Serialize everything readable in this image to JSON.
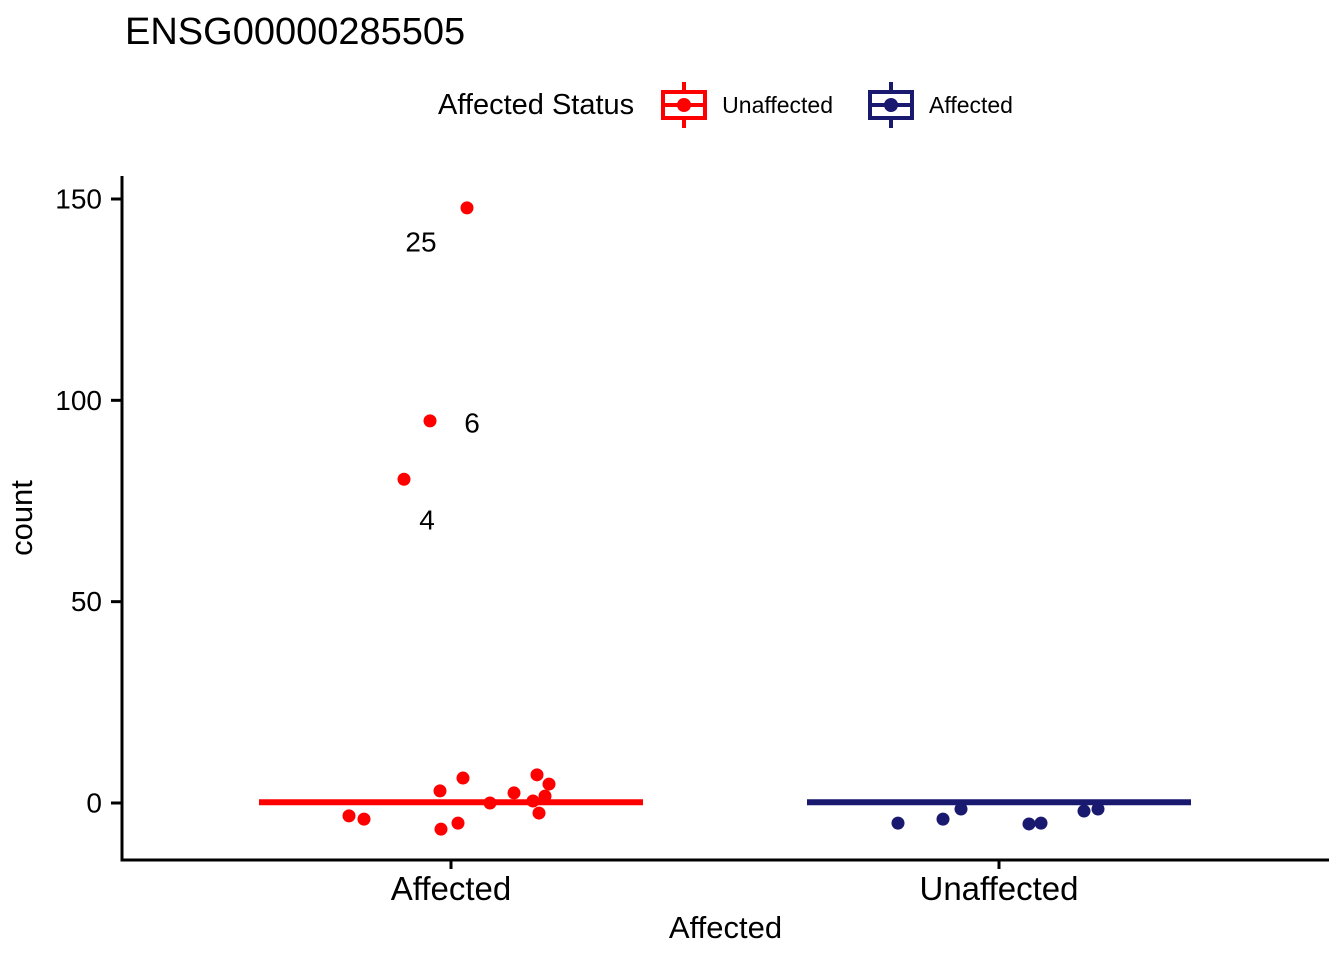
{
  "title": "ENSG00000285505",
  "legend": {
    "title": "Affected Status",
    "items": [
      {
        "label": "Unaffected",
        "color": "#FF0000"
      },
      {
        "label": "Affected",
        "color": "#191970"
      }
    ]
  },
  "chart_data": {
    "type": "scatter",
    "title": "ENSG00000285505",
    "xlabel": "Affected",
    "ylabel": "count",
    "ylim": [
      -14,
      156
    ],
    "yticks": [
      0,
      50,
      100,
      150
    ],
    "categories": [
      "Affected",
      "Unaffected"
    ],
    "grid": false,
    "legend_position": "top",
    "legend_title": "Affected Status",
    "series": [
      {
        "name": "Unaffected",
        "category": "Affected",
        "color": "#FF0000",
        "median": 0.2,
        "points": [
          {
            "count": -3.2,
            "dx": -102
          },
          {
            "count": -4.0,
            "dx": -87
          },
          {
            "count": 3.0,
            "dx": -11
          },
          {
            "count": -6.5,
            "dx": -10
          },
          {
            "count": -5.0,
            "dx": 7
          },
          {
            "count": 6.2,
            "dx": 12
          },
          {
            "count": 0.0,
            "dx": 39
          },
          {
            "count": 2.5,
            "dx": 63
          },
          {
            "count": 7.0,
            "dx": 86
          },
          {
            "count": 4.7,
            "dx": 98
          },
          {
            "count": 0.5,
            "dx": 82
          },
          {
            "count": 1.7,
            "dx": 94
          },
          {
            "count": -2.5,
            "dx": 88
          },
          {
            "count": 147.8,
            "dx": 16
          },
          {
            "count": 94.9,
            "dx": -21
          },
          {
            "count": 80.4,
            "dx": -47
          }
        ]
      },
      {
        "name": "Affected",
        "category": "Unaffected",
        "color": "#191970",
        "median": 0.2,
        "points": [
          {
            "count": -5.0,
            "dx": -101
          },
          {
            "count": -4.0,
            "dx": -56
          },
          {
            "count": -1.5,
            "dx": -38
          },
          {
            "count": -5.2,
            "dx": 30
          },
          {
            "count": -5.0,
            "dx": 42
          },
          {
            "count": -2.0,
            "dx": 85
          },
          {
            "count": -1.5,
            "dx": 99
          }
        ]
      }
    ],
    "annotations": [
      {
        "text": "25",
        "category": "Affected",
        "dx": -30,
        "count": 139.3
      },
      {
        "text": "6",
        "category": "Affected",
        "dx": 21,
        "count": 94.4
      },
      {
        "text": "4",
        "category": "Affected",
        "dx": -24,
        "count": 70.3
      }
    ]
  }
}
